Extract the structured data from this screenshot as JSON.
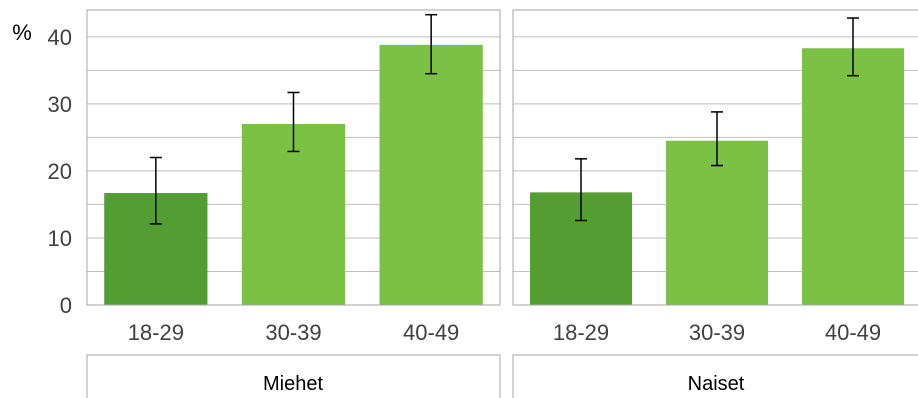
{
  "chart_data": {
    "type": "bar",
    "y_unit_label": "%",
    "ylim": [
      0,
      44
    ],
    "yticks": [
      0,
      10,
      20,
      30,
      40
    ],
    "categories": [
      "18-29",
      "30-39",
      "40-49"
    ],
    "grid": true,
    "colors": {
      "first_bar": "#539d33",
      "other_bars": "#7bc145",
      "grid": "#bfbfbf",
      "frame": "#a6a6a6",
      "error_bar": "#000000"
    },
    "panels": [
      {
        "label": "Miehet",
        "values": [
          16.7,
          27.0,
          38.8
        ],
        "error_low": [
          12.1,
          22.9,
          34.5
        ],
        "error_high": [
          22.0,
          31.7,
          43.3
        ]
      },
      {
        "label": "Naiset",
        "values": [
          16.8,
          24.5,
          38.3
        ],
        "error_low": [
          12.6,
          20.8,
          34.2
        ],
        "error_high": [
          21.8,
          28.8,
          42.8
        ]
      }
    ]
  }
}
